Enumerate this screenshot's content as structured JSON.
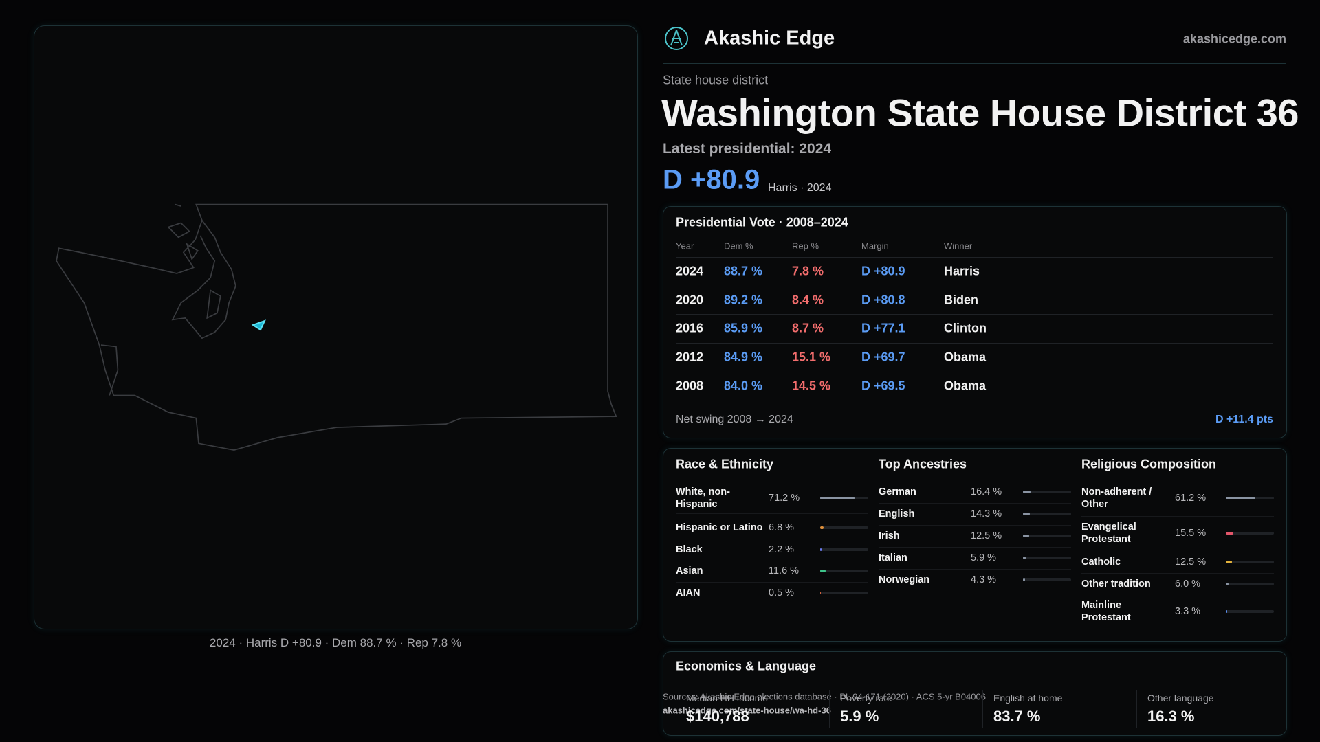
{
  "header": {
    "brand": "Akashic Edge",
    "site": "akashicedge.com"
  },
  "district": {
    "kicker": "State house district",
    "title": "Washington State House District 36",
    "latest": "Latest presidential: 2024",
    "margin": "D +80.9",
    "margin_note": "Harris · 2024"
  },
  "map": {
    "caption": "2024 · Harris D +80.9 · Dem 88.7 % · Rep 7.8 %"
  },
  "vote_table": {
    "title": "Presidential Vote · 2008–2024",
    "columns": [
      "Year",
      "Dem %",
      "Rep %",
      "Margin",
      "Winner"
    ],
    "rows": [
      [
        "2024",
        "88.7 %",
        "7.8 %",
        "D +80.9",
        "Harris"
      ],
      [
        "2020",
        "89.2 %",
        "8.4 %",
        "D +80.8",
        "Biden"
      ],
      [
        "2016",
        "85.9 %",
        "8.7 %",
        "D +77.1",
        "Clinton"
      ],
      [
        "2012",
        "84.9 %",
        "15.1 %",
        "D +69.7",
        "Obama"
      ],
      [
        "2008",
        "84.0 %",
        "14.5 %",
        "D +69.5",
        "Obama"
      ]
    ],
    "footer": {
      "label": "Net swing 2008 → 2024",
      "value": "D +11.4 pts"
    }
  },
  "demographics": [
    {
      "title": "Race & Ethnicity",
      "xlim": [
        0,
        100
      ],
      "items": [
        {
          "label": "White, non-Hispanic",
          "value": 71.2,
          "value_label": "71.2 %",
          "color": "#8a94a3"
        },
        {
          "label": "Hispanic or Latino",
          "value": 6.8,
          "value_label": "6.8 %",
          "color": "#e0903a"
        },
        {
          "label": "Black",
          "value": 2.2,
          "value_label": "2.2 %",
          "color": "#6b7cf0"
        },
        {
          "label": "Asian",
          "value": 11.6,
          "value_label": "11.6 %",
          "color": "#3ec38a"
        },
        {
          "label": "AIAN",
          "value": 0.5,
          "value_label": "0.5 %",
          "color": "#d0603a"
        }
      ]
    },
    {
      "title": "Top Ancestries",
      "xlim": [
        0,
        100
      ],
      "items": [
        {
          "label": "German",
          "value": 16.4,
          "value_label": "16.4 %",
          "color": "#8a94a3"
        },
        {
          "label": "English",
          "value": 14.3,
          "value_label": "14.3 %",
          "color": "#8a94a3"
        },
        {
          "label": "Irish",
          "value": 12.5,
          "value_label": "12.5 %",
          "color": "#8a94a3"
        },
        {
          "label": "Italian",
          "value": 5.9,
          "value_label": "5.9 %",
          "color": "#8a94a3"
        },
        {
          "label": "Norwegian",
          "value": 4.3,
          "value_label": "4.3 %",
          "color": "#8a94a3"
        }
      ]
    },
    {
      "title": "Religious Composition",
      "xlim": [
        0,
        100
      ],
      "items": [
        {
          "label": "Non-adherent / Other",
          "value": 61.2,
          "value_label": "61.2 %",
          "color": "#8a94a3"
        },
        {
          "label": "Evangelical Protestant",
          "value": 15.5,
          "value_label": "15.5 %",
          "color": "#e2566a"
        },
        {
          "label": "Catholic",
          "value": 12.5,
          "value_label": "12.5 %",
          "color": "#e3b23c"
        },
        {
          "label": "Other tradition",
          "value": 6.0,
          "value_label": "6.0 %",
          "color": "#8a94a3"
        },
        {
          "label": "Mainline Protestant",
          "value": 3.3,
          "value_label": "3.3 %",
          "color": "#5b8ef0"
        }
      ]
    }
  ],
  "economics": {
    "title": "Economics & Language",
    "items": [
      {
        "label": "Median HH income",
        "value": "$140,788"
      },
      {
        "label": "Poverty rate",
        "value": "5.9 %"
      },
      {
        "label": "English at home",
        "value": "83.7 %"
      },
      {
        "label": "Other language",
        "value": "16.3 %"
      }
    ]
  },
  "sources": [
    "Sources: Akashic Edge elections database · PL 94-171 (2020) · ACS 5-yr B04006",
    "akashicedge.com/state-house/wa-hd-36"
  ]
}
